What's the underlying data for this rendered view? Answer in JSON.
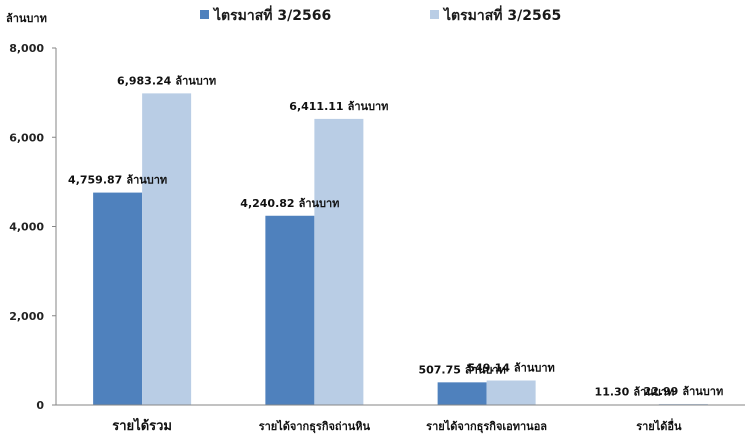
{
  "chart_data": {
    "type": "bar",
    "ylabel": "ล้านบาท",
    "ylim": [
      0,
      8000
    ],
    "yticks": [
      "0",
      "2,000",
      "4,000",
      "6,000",
      "8,000"
    ],
    "unit": "ล้านบาท",
    "categories": [
      "รายได้รวม",
      "รายได้จากธุรกิจถ่านหิน",
      "รายได้จากธุรกิจเอทานอล",
      "รายได้อื่น"
    ],
    "series": [
      {
        "name": "ไตรมาสที่ 3/2566",
        "color": "#4f81bd",
        "values": [
          4759.87,
          4240.82,
          507.75,
          11.3
        ],
        "labels": [
          "4,759.87",
          "4,240.82",
          "507.75",
          "11.30"
        ]
      },
      {
        "name": "ไตรมาสที่ 3/2565",
        "color": "#b9cde5",
        "values": [
          6983.24,
          6411.11,
          549.14,
          22.99
        ],
        "labels": [
          "6,983.24",
          "6,411.11",
          "549.14",
          "22.99"
        ]
      }
    ],
    "legend_position": "top",
    "grid": false
  }
}
